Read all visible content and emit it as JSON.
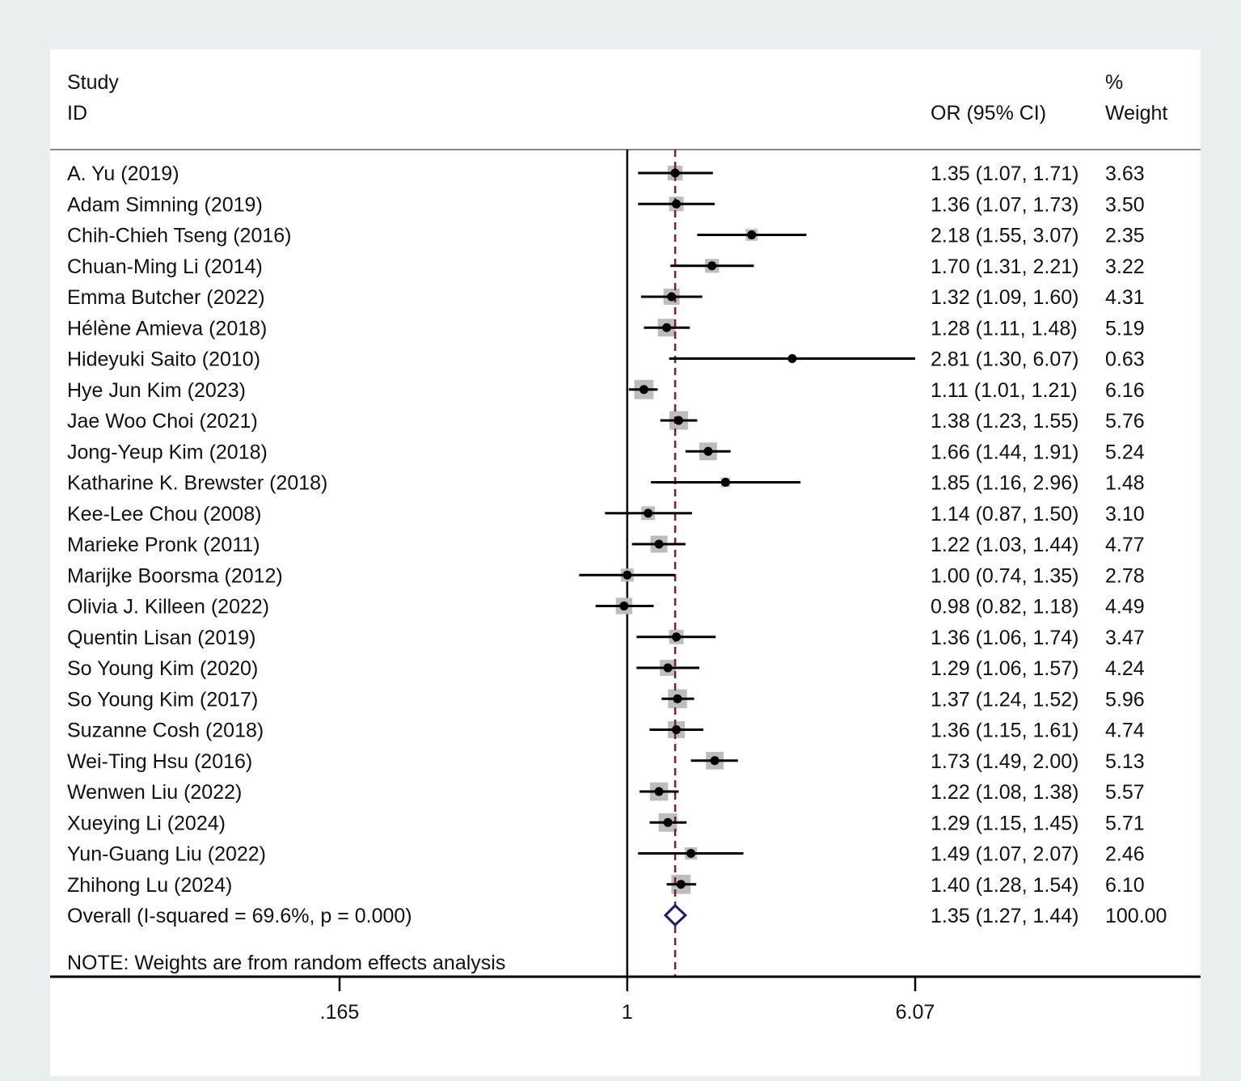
{
  "header": {
    "study_line1": "Study",
    "study_line2": "ID",
    "or_prefix": "OR",
    "or_suffix": " (95% CI)",
    "weight_line1": "%",
    "weight_line2": "Weight"
  },
  "note": "NOTE: Weights are from random effects analysis",
  "chart_data": {
    "type": "forest",
    "measure": "OR",
    "scale": "log",
    "xlim": [
      0.165,
      6.07
    ],
    "xticks": [
      {
        "value": 0.165,
        "label": ".165"
      },
      {
        "value": 1,
        "label": "1"
      },
      {
        "value": 6.07,
        "label": "6.07"
      }
    ],
    "reference_line": 1,
    "pooled_line": 1.35,
    "studies": [
      {
        "study": "A. Yu (2019)",
        "or": 1.35,
        "lo": 1.07,
        "hi": 1.71,
        "ci_text": "1.35 (1.07, 1.71)",
        "weight": "3.63"
      },
      {
        "study": "Adam Simning (2019)",
        "or": 1.36,
        "lo": 1.07,
        "hi": 1.73,
        "ci_text": "1.36 (1.07, 1.73)",
        "weight": "3.50"
      },
      {
        "study": "Chih-Chieh Tseng (2016)",
        "or": 2.18,
        "lo": 1.55,
        "hi": 3.07,
        "ci_text": "2.18 (1.55, 3.07)",
        "weight": "2.35"
      },
      {
        "study": "Chuan-Ming Li (2014)",
        "or": 1.7,
        "lo": 1.31,
        "hi": 2.21,
        "ci_text": "1.70 (1.31, 2.21)",
        "weight": "3.22"
      },
      {
        "study": "Emma Butcher (2022)",
        "or": 1.32,
        "lo": 1.09,
        "hi": 1.6,
        "ci_text": "1.32 (1.09, 1.60)",
        "weight": "4.31"
      },
      {
        "study": "Hélène Amieva (2018)",
        "or": 1.28,
        "lo": 1.11,
        "hi": 1.48,
        "ci_text": "1.28 (1.11, 1.48)",
        "weight": "5.19"
      },
      {
        "study": "Hideyuki Saito (2010)",
        "or": 2.81,
        "lo": 1.3,
        "hi": 6.07,
        "ci_text": "2.81 (1.30, 6.07)",
        "weight": "0.63"
      },
      {
        "study": "Hye Jun Kim (2023)",
        "or": 1.11,
        "lo": 1.01,
        "hi": 1.21,
        "ci_text": "1.11 (1.01, 1.21)",
        "weight": "6.16"
      },
      {
        "study": "Jae Woo Choi (2021)",
        "or": 1.38,
        "lo": 1.23,
        "hi": 1.55,
        "ci_text": "1.38 (1.23, 1.55)",
        "weight": "5.76"
      },
      {
        "study": "Jong-Yeup Kim (2018)",
        "or": 1.66,
        "lo": 1.44,
        "hi": 1.91,
        "ci_text": "1.66 (1.44, 1.91)",
        "weight": "5.24"
      },
      {
        "study": "Katharine K. Brewster (2018)",
        "or": 1.85,
        "lo": 1.16,
        "hi": 2.96,
        "ci_text": "1.85 (1.16, 2.96)",
        "weight": "1.48"
      },
      {
        "study": "Kee-Lee Chou (2008)",
        "or": 1.14,
        "lo": 0.87,
        "hi": 1.5,
        "ci_text": "1.14 (0.87, 1.50)",
        "weight": "3.10"
      },
      {
        "study": "Marieke Pronk (2011)",
        "or": 1.22,
        "lo": 1.03,
        "hi": 1.44,
        "ci_text": "1.22 (1.03, 1.44)",
        "weight": "4.77"
      },
      {
        "study": "Marijke Boorsma (2012)",
        "or": 1.0,
        "lo": 0.74,
        "hi": 1.35,
        "ci_text": "1.00 (0.74, 1.35)",
        "weight": "2.78"
      },
      {
        "study": "Olivia J. Killeen (2022)",
        "or": 0.98,
        "lo": 0.82,
        "hi": 1.18,
        "ci_text": "0.98 (0.82, 1.18)",
        "weight": "4.49"
      },
      {
        "study": "Quentin Lisan (2019)",
        "or": 1.36,
        "lo": 1.06,
        "hi": 1.74,
        "ci_text": "1.36 (1.06, 1.74)",
        "weight": "3.47"
      },
      {
        "study": "So Young Kim (2020)",
        "or": 1.29,
        "lo": 1.06,
        "hi": 1.57,
        "ci_text": "1.29 (1.06, 1.57)",
        "weight": "4.24"
      },
      {
        "study": "So Young Kim (2017)",
        "or": 1.37,
        "lo": 1.24,
        "hi": 1.52,
        "ci_text": "1.37 (1.24, 1.52)",
        "weight": "5.96"
      },
      {
        "study": "Suzanne Cosh (2018)",
        "or": 1.36,
        "lo": 1.15,
        "hi": 1.61,
        "ci_text": "1.36 (1.15, 1.61)",
        "weight": "4.74"
      },
      {
        "study": "Wei-Ting Hsu (2016)",
        "or": 1.73,
        "lo": 1.49,
        "hi": 2.0,
        "ci_text": "1.73 (1.49, 2.00)",
        "weight": "5.13"
      },
      {
        "study": "Wenwen Liu (2022)",
        "or": 1.22,
        "lo": 1.08,
        "hi": 1.38,
        "ci_text": "1.22 (1.08, 1.38)",
        "weight": "5.57"
      },
      {
        "study": "Xueying Li (2024)",
        "or": 1.29,
        "lo": 1.15,
        "hi": 1.45,
        "ci_text": "1.29 (1.15, 1.45)",
        "weight": "5.71"
      },
      {
        "study": "Yun-Guang Liu (2022)",
        "or": 1.49,
        "lo": 1.07,
        "hi": 2.07,
        "ci_text": "1.49 (1.07, 2.07)",
        "weight": "2.46"
      },
      {
        "study": "Zhihong Lu (2024)",
        "or": 1.4,
        "lo": 1.28,
        "hi": 1.54,
        "ci_text": "1.40 (1.28, 1.54)",
        "weight": "6.10"
      }
    ],
    "overall": {
      "label": "Overall  (I-squared = 69.6%, p = 0.000)",
      "or": 1.35,
      "lo": 1.27,
      "hi": 1.44,
      "ci_text": "1.35 (1.27, 1.44)",
      "weight": "100.00"
    },
    "colors": {
      "box": "#bdbdbd",
      "marker": "#000000",
      "ci_line": "#000000",
      "pooled_line": "#7a1f2b",
      "diamond": "#1c1c78"
    }
  }
}
